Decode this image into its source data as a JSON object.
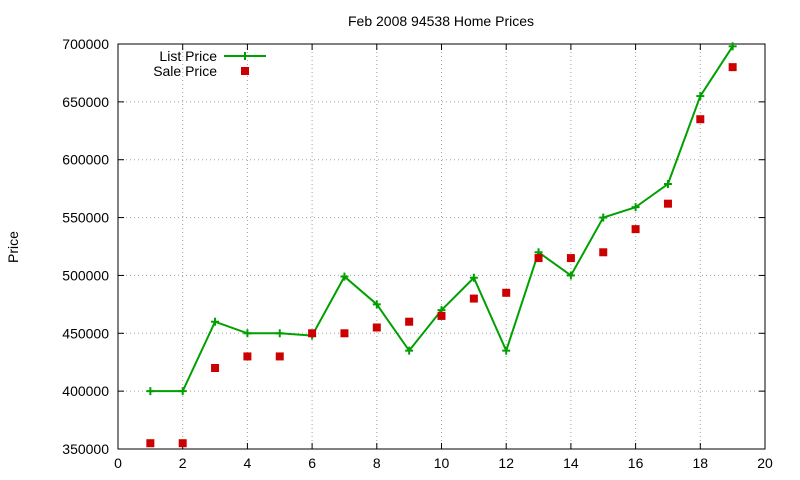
{
  "chart_data": {
    "type": "line",
    "title": "Feb 2008 94538 Home Prices",
    "xlabel": "",
    "ylabel": "Price",
    "xlim": [
      0,
      20
    ],
    "ylim": [
      350000,
      700000
    ],
    "xticks": [
      "0",
      "2",
      "4",
      "6",
      "8",
      "10",
      "12",
      "14",
      "16",
      "18",
      "20"
    ],
    "yticks": [
      "350000",
      "400000",
      "450000",
      "500000",
      "550000",
      "600000",
      "650000",
      "700000"
    ],
    "grid": true,
    "legend_position": "top-left",
    "x": [
      1,
      2,
      3,
      4,
      5,
      6,
      7,
      8,
      9,
      10,
      11,
      12,
      13,
      14,
      15,
      16,
      17,
      18,
      19
    ],
    "series": [
      {
        "name": "List Price",
        "style": "line-plus",
        "color": "#00a000",
        "values": [
          400000,
          400000,
          460000,
          450000,
          450000,
          448000,
          499000,
          475000,
          435000,
          470000,
          498000,
          435000,
          520000,
          500000,
          550000,
          559000,
          579000,
          655000,
          698000
        ]
      },
      {
        "name": "Sale Price",
        "style": "square",
        "color": "#cc0000",
        "values": [
          355000,
          355000,
          420000,
          430000,
          430000,
          450000,
          450000,
          455000,
          460000,
          465000,
          480000,
          485000,
          515000,
          515000,
          520000,
          540000,
          562000,
          635000,
          680000
        ]
      }
    ]
  }
}
